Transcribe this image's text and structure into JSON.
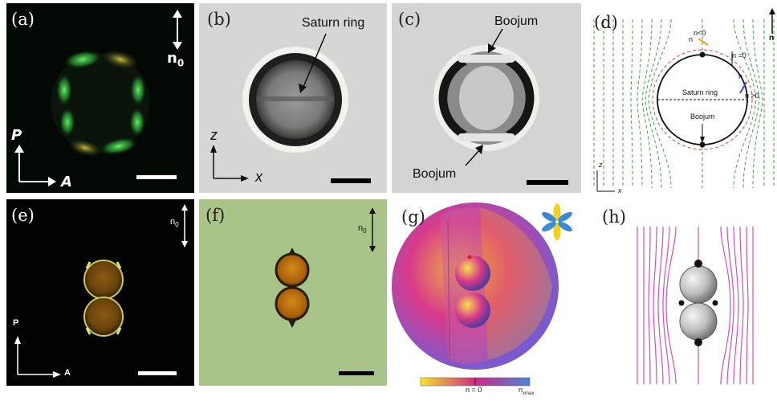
{
  "panels": {
    "a": {
      "label": "(a)",
      "director": "n",
      "director_sub": "0",
      "polarizer": "P",
      "analyzer": "A"
    },
    "b": {
      "label": "(b)",
      "annotation": "Saturn ring",
      "axis_z": "z",
      "axis_x": "x"
    },
    "c": {
      "label": "(c)",
      "annotation_top": "Boojum",
      "annotation_bottom": "Boojum"
    },
    "d": {
      "label": "(d)",
      "n_label_top": "n",
      "n_lt0": "n<0",
      "nx0": "n =0",
      "n_label_right": "n",
      "n_gt0": "n >0",
      "saturn_ring": "Saturn ring",
      "boojum": "Boojum",
      "axis_z": "z",
      "axis_x": "x",
      "edge_n": "n"
    },
    "e": {
      "label": "(e)",
      "director": "n",
      "director_sub": "0",
      "polarizer": "P",
      "analyzer": "A"
    },
    "f": {
      "label": "(f)",
      "director": "n",
      "director_sub": "0"
    },
    "g": {
      "label": "(g)",
      "colorbar_zero": "n = 0",
      "colorbar_zero_sub": "x",
      "colorbar_max": "n",
      "colorbar_max_sub": "xmax"
    },
    "h": {
      "label": "(h)"
    }
  },
  "colors": {
    "green_glow": "#3fd24a",
    "field_line_green": "#4a9a4a",
    "field_line_pink": "#d64fb8",
    "colorbar_yellow": "#f5e62a",
    "colorbar_magenta": "#d02a86",
    "colorbar_blue": "#4a86d6"
  }
}
